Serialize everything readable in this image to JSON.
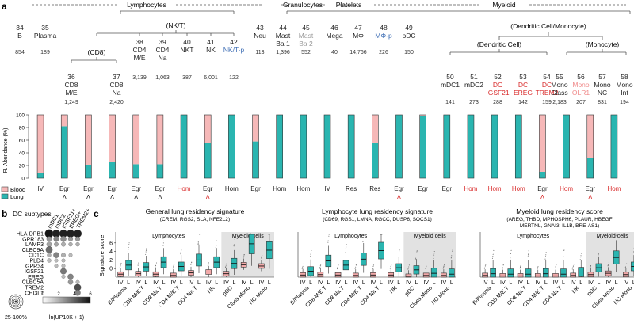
{
  "panel_labels": {
    "a": "a",
    "b": "b",
    "c": "c"
  },
  "groups": {
    "lymphocytes": "Lymphocytes",
    "granulocytes": "Granulocytes",
    "platelets": "Platelets",
    "myeloid": "Myeloid",
    "nk_t": "(NK/T)",
    "cd8": "(CD8)",
    "dc_mono": "(Dendritic Cell/Monocyte)",
    "dc": "(Dendritic Cell)",
    "mono": "(Monocyte)"
  },
  "top_clusters": [
    {
      "id": "34",
      "l1": "B",
      "l2": "",
      "count": "854",
      "color": "#222"
    },
    {
      "id": "35",
      "l1": "Plasma",
      "l2": "",
      "count": "189",
      "color": "#222"
    },
    {
      "id": "43",
      "l1": "Neu",
      "l2": "",
      "count": "113",
      "color": "#222"
    },
    {
      "id": "44",
      "l1": "Mast",
      "l2": "Ba 1",
      "count": "1,396",
      "color": "#222"
    },
    {
      "id": "45",
      "l1": "Mast",
      "l2": "Ba 2",
      "count": "552",
      "color": "#999999"
    },
    {
      "id": "46",
      "l1": "Mega",
      "l2": "",
      "count": "40",
      "color": "#222"
    },
    {
      "id": "47",
      "l1": "MΦ",
      "l2": "",
      "count": "14,766",
      "color": "#222"
    },
    {
      "id": "48",
      "l1": "MΦ-p",
      "l2": "",
      "count": "226",
      "color": "#3f6fb5"
    },
    {
      "id": "49",
      "l1": "pDC",
      "l2": "",
      "count": "150",
      "color": "#222"
    }
  ],
  "mid_clusters": [
    {
      "id": "38",
      "l1": "CD4",
      "l2": "M/E",
      "count": "3,139",
      "color": "#222"
    },
    {
      "id": "39",
      "l1": "CD4",
      "l2": "Na",
      "count": "1,063",
      "color": "#222"
    },
    {
      "id": "40",
      "l1": "NKT",
      "l2": "",
      "count": "387",
      "color": "#222"
    },
    {
      "id": "41",
      "l1": "NK",
      "l2": "",
      "count": "6,001",
      "color": "#222"
    },
    {
      "id": "42",
      "l1": "NK/T-p",
      "l2": "",
      "count": "122",
      "color": "#3f6fb5"
    }
  ],
  "cd8_clusters": [
    {
      "id": "36",
      "l1": "CD8",
      "l2": "M/E",
      "count": "1,249",
      "color": "#222"
    },
    {
      "id": "37",
      "l1": "CD8",
      "l2": "Na",
      "count": "2,420",
      "color": "#222"
    }
  ],
  "myeloid_clusters": [
    {
      "id": "50",
      "l1": "mDC1",
      "l2": "",
      "count": "141",
      "color": "#222"
    },
    {
      "id": "51",
      "l1": "mDC2",
      "l2": "",
      "count": "273",
      "color": "#222"
    },
    {
      "id": "52",
      "l1": "DC",
      "l2": "IGSF21",
      "count": "288",
      "color": "#d92b2b"
    },
    {
      "id": "53",
      "l1": "DC",
      "l2": "EREG",
      "count": "142",
      "color": "#d92b2b"
    },
    {
      "id": "54",
      "l1": "DC",
      "l2": "TREM2",
      "count": "159",
      "color": "#d92b2b"
    },
    {
      "id": "55",
      "l1": "Mono",
      "l2": "Class",
      "count": "2,183",
      "color": "#222"
    },
    {
      "id": "56",
      "l1": "Mono",
      "l2": "OLR1",
      "count": "207",
      "color": "#f08a8a"
    },
    {
      "id": "57",
      "l1": "Mono",
      "l2": "NC",
      "count": "831",
      "color": "#222"
    },
    {
      "id": "58",
      "l1": "Mono",
      "l2": "Int",
      "count": "194",
      "color": "#222"
    }
  ],
  "abundance": {
    "ylabel": "R. Abundance (%)",
    "ticks": [
      "100",
      "80",
      "60",
      "40",
      "20",
      "0"
    ],
    "legend": [
      "Blood",
      "Lung"
    ],
    "colors": {
      "blood": "#f6b8b8",
      "lung": "#2ab5b0"
    },
    "blood_pct": [
      92,
      18,
      80,
      75,
      78,
      78,
      0,
      45,
      0,
      42,
      0,
      0,
      0,
      0,
      45,
      0,
      2,
      0,
      0,
      0,
      0,
      90,
      0,
      68,
      0
    ],
    "categories": [
      "IV",
      "Egr",
      "Egr",
      "Egr",
      "Egr",
      "Egr",
      "Hom",
      "Egr",
      "Hom",
      "Egr",
      "Hom",
      "Hom",
      "IV",
      "Res",
      "Res",
      "Egr",
      "Egr",
      "Egr",
      "Hom",
      "Hom",
      "Hom",
      "Egr",
      "Hom",
      "Egr",
      "Hom"
    ],
    "deltas": [
      "",
      "Δ",
      "Δ",
      "Δ",
      "Δ",
      "Δ",
      "",
      "Δ",
      "",
      "",
      "",
      "",
      "",
      "",
      "",
      "Δ",
      "",
      "",
      "",
      "",
      "",
      "Δ",
      "",
      "Δ",
      ""
    ],
    "cat_red": [
      false,
      false,
      false,
      false,
      false,
      false,
      true,
      false,
      false,
      false,
      false,
      false,
      false,
      false,
      false,
      false,
      false,
      false,
      true,
      true,
      true,
      false,
      true,
      false,
      true
    ],
    "delta_red": [
      false,
      false,
      false,
      false,
      false,
      false,
      false,
      true,
      false,
      false,
      false,
      false,
      false,
      false,
      false,
      true,
      false,
      false,
      false,
      false,
      false,
      true,
      false,
      true,
      false
    ]
  },
  "panel_b": {
    "title": "DC subtypes",
    "columns": [
      "mDC1",
      "mDC2",
      "IGSF21+",
      "EREG+",
      "TREM2+"
    ],
    "genes": [
      "HLA-DPB1",
      "GPR183",
      "LAMP3",
      "CLEC9A",
      "CD1C",
      "PLD4",
      "GPR34",
      "IGSF21",
      "EREG",
      "CLEC5A",
      "TREM2",
      "CHI3L1"
    ],
    "size_legend": "25-100%",
    "color_legend": "ln(UP10K + 1)",
    "color_ticks": [
      "0",
      "2",
      "4",
      "6"
    ],
    "dots": [
      [
        1.0,
        0.9,
        0.9,
        0.9,
        0.9
      ],
      [
        0.5,
        0.55,
        0.6,
        0.45,
        0.45
      ],
      [
        0.5,
        0.4,
        0.4,
        0.35,
        0.35
      ],
      [
        0.75,
        0,
        0,
        0,
        0
      ],
      [
        0.35,
        0.6,
        0.4,
        0.3,
        0
      ],
      [
        0.35,
        0.3,
        0.3,
        0,
        0
      ],
      [
        0,
        0.3,
        0.3,
        0,
        0
      ],
      [
        0,
        0,
        0.65,
        0,
        0
      ],
      [
        0,
        0,
        0.3,
        0.6,
        0
      ],
      [
        0,
        0,
        0,
        0.5,
        0.3
      ],
      [
        0,
        0,
        0,
        0,
        0.75
      ],
      [
        0,
        0,
        0,
        0,
        0.6
      ]
    ],
    "shade": [
      [
        0.95,
        0.9,
        0.9,
        0.9,
        0.9
      ],
      [
        0.35,
        0.45,
        0.4,
        0.35,
        0.35
      ],
      [
        0.3,
        0.3,
        0.25,
        0.25,
        0.25
      ],
      [
        0.55,
        0,
        0,
        0,
        0
      ],
      [
        0.25,
        0.45,
        0.25,
        0.2,
        0
      ],
      [
        0.2,
        0.2,
        0.2,
        0,
        0
      ],
      [
        0,
        0.2,
        0.2,
        0,
        0
      ],
      [
        0,
        0,
        0.5,
        0,
        0
      ],
      [
        0,
        0,
        0.2,
        0.45,
        0
      ],
      [
        0,
        0,
        0,
        0.35,
        0.2
      ],
      [
        0,
        0,
        0,
        0,
        0.7
      ],
      [
        0,
        0,
        0,
        0,
        0.45
      ]
    ]
  },
  "chart_data": [
    {
      "type": "box",
      "title": "General lung residency signature",
      "subtitle": "(CREM, RGS2, SLA, NFE2L2)",
      "ylabel": "Signature score",
      "ylim": [
        -2,
        8
      ],
      "yticks": [
        "6",
        "4",
        "2",
        "0"
      ],
      "group_labels": [
        "Lymphocytes",
        "Myeloid cells"
      ],
      "categories": [
        "B/Plasma",
        "CD8 M/E T",
        "CD8 Na T",
        "CD4 M/E T",
        "CD4 Na T",
        "NK",
        "pDC",
        "Class Mono",
        "NC Mono"
      ],
      "iv_medians": [
        -1.3,
        -1.2,
        -1.3,
        -1.6,
        -1.0,
        -0.8,
        -1.2,
        0.9,
        0.6
      ],
      "l_medians": [
        0.8,
        0.4,
        1.5,
        0.5,
        2.0,
        1.5,
        1.2,
        5.8,
        4.3
      ]
    },
    {
      "type": "box",
      "title": "Lymphocyte lung residency signature",
      "subtitle": "(CD69, RGS1, LMNA, RGCC, DUSP6, SOCS1)",
      "ylabel": "",
      "ylim": [
        -2,
        8
      ],
      "yticks": [],
      "group_labels": [
        "Lymphocytes",
        "Myeloid cells"
      ],
      "categories": [
        "B/Plasma",
        "CD8 M/E T",
        "CD8 Na T",
        "CD4 M/E T",
        "CD4 Na T",
        "NK",
        "pDC",
        "Class Mono",
        "NC Mono"
      ],
      "iv_medians": [
        -1.5,
        -1.4,
        -1.5,
        -1.6,
        -1.5,
        -1.5,
        -1.8,
        -1.6,
        -1.6
      ],
      "l_medians": [
        -0.6,
        1.8,
        0.8,
        2.2,
        4.2,
        0.2,
        -0.3,
        -1.1,
        -1.3
      ]
    },
    {
      "type": "box",
      "title": "Myeloid lung residency score",
      "subtitle": "(AREG, THBD, MPHOSPH6, PLAUR, HBEGF",
      "subtitle2": "MERTNL, GNAI3, IL1B, BRE-AS1)",
      "ylabel": "",
      "ylim": [
        -2,
        8
      ],
      "yticks": [],
      "group_labels": [
        "Lymphocytes",
        "Myeloid cells"
      ],
      "categories": [
        "B/Plasma",
        "CD8 M/E T",
        "CD8 Na T",
        "CD4 M/E T",
        "CD4 Na T",
        "NK",
        "pDC",
        "Class Mono",
        "NC Mono"
      ],
      "iv_medians": [
        -1.6,
        -1.7,
        -1.7,
        -1.7,
        -1.7,
        -1.6,
        -1.4,
        -1.1,
        -1.4
      ],
      "l_medians": [
        -1.2,
        -1.3,
        -1.3,
        -1.2,
        -1.3,
        -0.8,
        0.2,
        2.6,
        0.5
      ]
    }
  ],
  "iv_label": "IV",
  "l_label": "L"
}
